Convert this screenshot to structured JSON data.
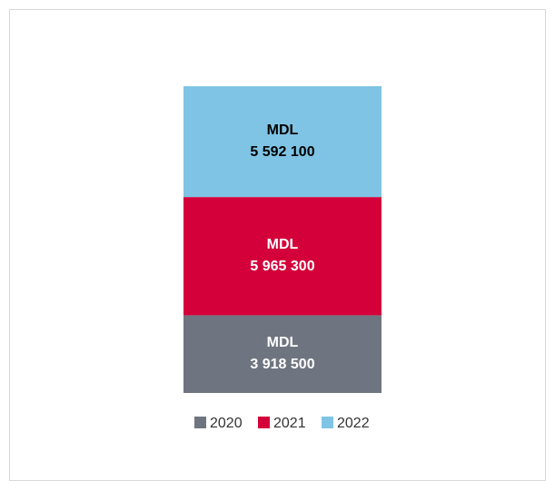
{
  "chart_data": {
    "type": "stacked-bar",
    "series": [
      {
        "name": "2020",
        "color": "#6f7580",
        "values": [
          3918500
        ],
        "value_labels": [
          "MDL\n3 918 500"
        ],
        "label_color": "#ffffff"
      },
      {
        "name": "2021",
        "color": "#d4003a",
        "values": [
          5965300
        ],
        "value_labels": [
          "MDL\n5 965 300"
        ],
        "label_color": "#ffffff"
      },
      {
        "name": "2022",
        "color": "#7fc4e4",
        "values": [
          5592100
        ],
        "value_labels": [
          "MDL\n5 592 100"
        ],
        "label_color": "#000000"
      }
    ],
    "legend": "bottom"
  }
}
